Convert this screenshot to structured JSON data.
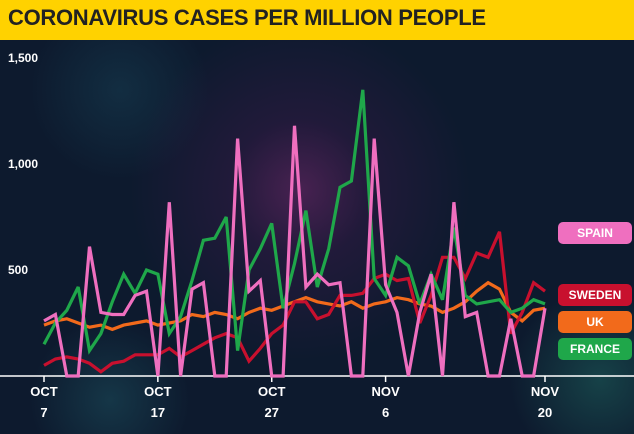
{
  "title": "CORONAVIRUS CASES PER MILLION PEOPLE",
  "colors": {
    "title_bar": "#ffd200",
    "Spain": "#ef6fbf",
    "Sweden": "#c8102e",
    "UK": "#f26a1b",
    "France": "#1fa74a"
  },
  "legend": [
    {
      "label": "SPAIN",
      "series": "Spain"
    },
    {
      "label": "SWEDEN",
      "series": "Sweden"
    },
    {
      "label": "UK",
      "series": "UK"
    },
    {
      "label": "FRANCE",
      "series": "France"
    }
  ],
  "chart_data": {
    "type": "line",
    "title": "CORONAVIRUS CASES PER MILLION PEOPLE",
    "xlabel": "",
    "ylabel": "",
    "ylim": [
      0,
      1500
    ],
    "yticks": [
      {
        "value": 500,
        "label": "500"
      },
      {
        "value": 1000,
        "label": "1,000"
      },
      {
        "value": 1500,
        "label": "1,500"
      }
    ],
    "x": [
      "Oct 7",
      "Oct 8",
      "Oct 9",
      "Oct 10",
      "Oct 11",
      "Oct 12",
      "Oct 13",
      "Oct 14",
      "Oct 15",
      "Oct 16",
      "Oct 17",
      "Oct 18",
      "Oct 19",
      "Oct 20",
      "Oct 21",
      "Oct 22",
      "Oct 23",
      "Oct 24",
      "Oct 25",
      "Oct 26",
      "Oct 27",
      "Oct 28",
      "Oct 29",
      "Oct 30",
      "Oct 31",
      "Nov 1",
      "Nov 2",
      "Nov 3",
      "Nov 4",
      "Nov 5",
      "Nov 6",
      "Nov 7",
      "Nov 8",
      "Nov 9",
      "Nov 10",
      "Nov 11",
      "Nov 12",
      "Nov 13",
      "Nov 14",
      "Nov 15",
      "Nov 16",
      "Nov 17",
      "Nov 18",
      "Nov 19",
      "Nov 20"
    ],
    "xticks": [
      {
        "index": 0,
        "line1": "OCT",
        "line2": "7"
      },
      {
        "index": 10,
        "line1": "OCT",
        "line2": "17"
      },
      {
        "index": 20,
        "line1": "OCT",
        "line2": "27"
      },
      {
        "index": 30,
        "line1": "NOV",
        "line2": "6"
      },
      {
        "index": 44,
        "line1": "NOV",
        "line2": "20"
      }
    ],
    "legend_position": "right",
    "grid": false,
    "series": [
      {
        "name": "UK",
        "values": [
          240,
          260,
          270,
          250,
          230,
          240,
          220,
          240,
          250,
          260,
          240,
          250,
          260,
          290,
          280,
          300,
          290,
          270,
          300,
          320,
          310,
          330,
          350,
          370,
          350,
          340,
          330,
          350,
          320,
          340,
          350,
          370,
          360,
          340,
          330,
          300,
          320,
          350,
          400,
          440,
          410,
          300,
          260,
          310,
          320
        ]
      },
      {
        "name": "Sweden",
        "values": [
          50,
          80,
          90,
          80,
          60,
          20,
          60,
          70,
          100,
          100,
          100,
          130,
          90,
          120,
          150,
          180,
          200,
          180,
          70,
          130,
          200,
          240,
          350,
          350,
          270,
          290,
          380,
          380,
          390,
          460,
          480,
          450,
          460,
          250,
          380,
          560,
          560,
          460,
          580,
          560,
          680,
          200,
          300,
          440,
          400
        ]
      },
      {
        "name": "France",
        "values": [
          150,
          250,
          310,
          420,
          120,
          200,
          350,
          480,
          390,
          500,
          480,
          200,
          280,
          450,
          640,
          650,
          750,
          120,
          500,
          600,
          720,
          320,
          530,
          780,
          420,
          600,
          890,
          920,
          1350,
          460,
          380,
          560,
          520,
          340,
          480,
          360,
          700,
          380,
          340,
          350,
          360,
          300,
          320,
          360,
          340
        ]
      },
      {
        "name": "Spain",
        "values": [
          260,
          290,
          0,
          0,
          610,
          300,
          290,
          290,
          380,
          400,
          0,
          820,
          0,
          410,
          440,
          0,
          0,
          1120,
          400,
          450,
          0,
          0,
          1180,
          420,
          480,
          430,
          440,
          0,
          0,
          1120,
          430,
          300,
          0,
          300,
          480,
          0,
          820,
          280,
          300,
          0,
          0,
          270,
          0,
          0,
          320
        ]
      }
    ]
  }
}
